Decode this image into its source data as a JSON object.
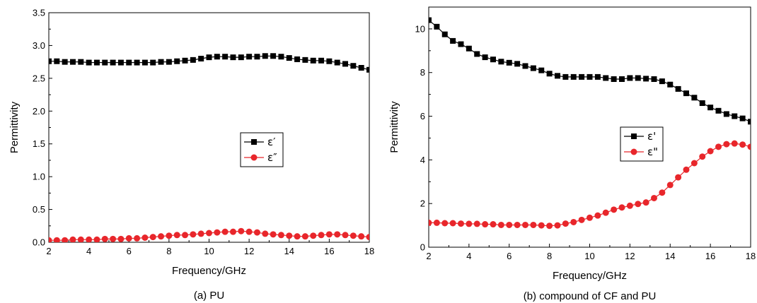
{
  "chart_data": [
    {
      "type": "line",
      "caption": "(a) PU",
      "xlabel": "Frequency/GHz",
      "ylabel": "Permittivity",
      "xlim": [
        2,
        18
      ],
      "ylim": [
        0,
        3.5
      ],
      "xticks": [
        2,
        4,
        6,
        8,
        10,
        12,
        14,
        16,
        18
      ],
      "yticks": [
        "0.0",
        "0.5",
        "1.0",
        "1.5",
        "2.0",
        "2.5",
        "3.0",
        "3.5"
      ],
      "legend_position": "center-right",
      "grid": false,
      "series": [
        {
          "name": "ε′",
          "color": "#000000",
          "marker": "square",
          "x": [
            2,
            2.4,
            2.8,
            3.2,
            3.6,
            4,
            4.4,
            4.8,
            5.2,
            5.6,
            6,
            6.4,
            6.8,
            7.2,
            7.6,
            8,
            8.4,
            8.8,
            9.2,
            9.6,
            10,
            10.4,
            10.8,
            11.2,
            11.6,
            12,
            12.4,
            12.8,
            13.2,
            13.6,
            14,
            14.4,
            14.8,
            15.2,
            15.6,
            16,
            16.4,
            16.8,
            17.2,
            17.6,
            18
          ],
          "y": [
            2.76,
            2.76,
            2.75,
            2.75,
            2.75,
            2.74,
            2.74,
            2.74,
            2.74,
            2.74,
            2.74,
            2.74,
            2.74,
            2.74,
            2.75,
            2.75,
            2.76,
            2.77,
            2.78,
            2.8,
            2.82,
            2.83,
            2.83,
            2.82,
            2.82,
            2.83,
            2.83,
            2.84,
            2.84,
            2.83,
            2.81,
            2.79,
            2.78,
            2.77,
            2.77,
            2.76,
            2.74,
            2.72,
            2.69,
            2.66,
            2.63
          ]
        },
        {
          "name": "ε″",
          "color": "#e8262b",
          "marker": "circle",
          "x": [
            2,
            2.4,
            2.8,
            3.2,
            3.6,
            4,
            4.4,
            4.8,
            5.2,
            5.6,
            6,
            6.4,
            6.8,
            7.2,
            7.6,
            8,
            8.4,
            8.8,
            9.2,
            9.6,
            10,
            10.4,
            10.8,
            11.2,
            11.6,
            12,
            12.4,
            12.8,
            13.2,
            13.6,
            14,
            14.4,
            14.8,
            15.2,
            15.6,
            16,
            16.4,
            16.8,
            17.2,
            17.6,
            18
          ],
          "y": [
            0.03,
            0.03,
            0.03,
            0.04,
            0.04,
            0.04,
            0.04,
            0.05,
            0.05,
            0.05,
            0.06,
            0.06,
            0.07,
            0.08,
            0.09,
            0.1,
            0.11,
            0.11,
            0.12,
            0.13,
            0.14,
            0.15,
            0.16,
            0.16,
            0.17,
            0.16,
            0.15,
            0.13,
            0.12,
            0.11,
            0.1,
            0.09,
            0.09,
            0.1,
            0.11,
            0.12,
            0.12,
            0.11,
            0.1,
            0.09,
            0.08
          ]
        }
      ]
    },
    {
      "type": "line",
      "caption": "(b) compound of CF and PU",
      "xlabel": "Frequency/GHz",
      "ylabel": "Permittivity",
      "xlim": [
        2,
        18
      ],
      "ylim": [
        0,
        11
      ],
      "xticks": [
        2,
        4,
        6,
        8,
        10,
        12,
        14,
        16,
        18
      ],
      "yticks": [
        "0",
        "2",
        "4",
        "6",
        "8",
        "10"
      ],
      "legend_position": "center-right",
      "grid": false,
      "series": [
        {
          "name": "ε'",
          "color": "#000000",
          "marker": "square",
          "x": [
            2,
            2.4,
            2.8,
            3.2,
            3.6,
            4,
            4.4,
            4.8,
            5.2,
            5.6,
            6,
            6.4,
            6.8,
            7.2,
            7.6,
            8,
            8.4,
            8.8,
            9.2,
            9.6,
            10,
            10.4,
            10.8,
            11.2,
            11.6,
            12,
            12.4,
            12.8,
            13.2,
            13.6,
            14,
            14.4,
            14.8,
            15.2,
            15.6,
            16,
            16.4,
            16.8,
            17.2,
            17.6,
            18
          ],
          "y": [
            10.4,
            10.1,
            9.75,
            9.45,
            9.3,
            9.1,
            8.85,
            8.7,
            8.6,
            8.5,
            8.45,
            8.4,
            8.3,
            8.2,
            8.1,
            7.95,
            7.85,
            7.8,
            7.8,
            7.8,
            7.8,
            7.8,
            7.75,
            7.7,
            7.7,
            7.75,
            7.75,
            7.72,
            7.7,
            7.6,
            7.45,
            7.25,
            7.05,
            6.85,
            6.6,
            6.4,
            6.25,
            6.1,
            6.0,
            5.9,
            5.75
          ]
        },
        {
          "name": "ε\"",
          "color": "#e8262b",
          "marker": "circle",
          "x": [
            2,
            2.4,
            2.8,
            3.2,
            3.6,
            4,
            4.4,
            4.8,
            5.2,
            5.6,
            6,
            6.4,
            6.8,
            7.2,
            7.6,
            8,
            8.4,
            8.8,
            9.2,
            9.6,
            10,
            10.4,
            10.8,
            11.2,
            11.6,
            12,
            12.4,
            12.8,
            13.2,
            13.6,
            14,
            14.4,
            14.8,
            15.2,
            15.6,
            16,
            16.4,
            16.8,
            17.2,
            17.6,
            18
          ],
          "y": [
            1.12,
            1.12,
            1.1,
            1.1,
            1.08,
            1.07,
            1.07,
            1.05,
            1.05,
            1.02,
            1.02,
            1.02,
            1.02,
            1.02,
            1.0,
            0.98,
            1.0,
            1.08,
            1.15,
            1.25,
            1.35,
            1.45,
            1.58,
            1.72,
            1.82,
            1.9,
            1.98,
            2.05,
            2.25,
            2.5,
            2.85,
            3.2,
            3.55,
            3.85,
            4.15,
            4.4,
            4.6,
            4.72,
            4.75,
            4.7,
            4.6
          ]
        }
      ]
    }
  ]
}
